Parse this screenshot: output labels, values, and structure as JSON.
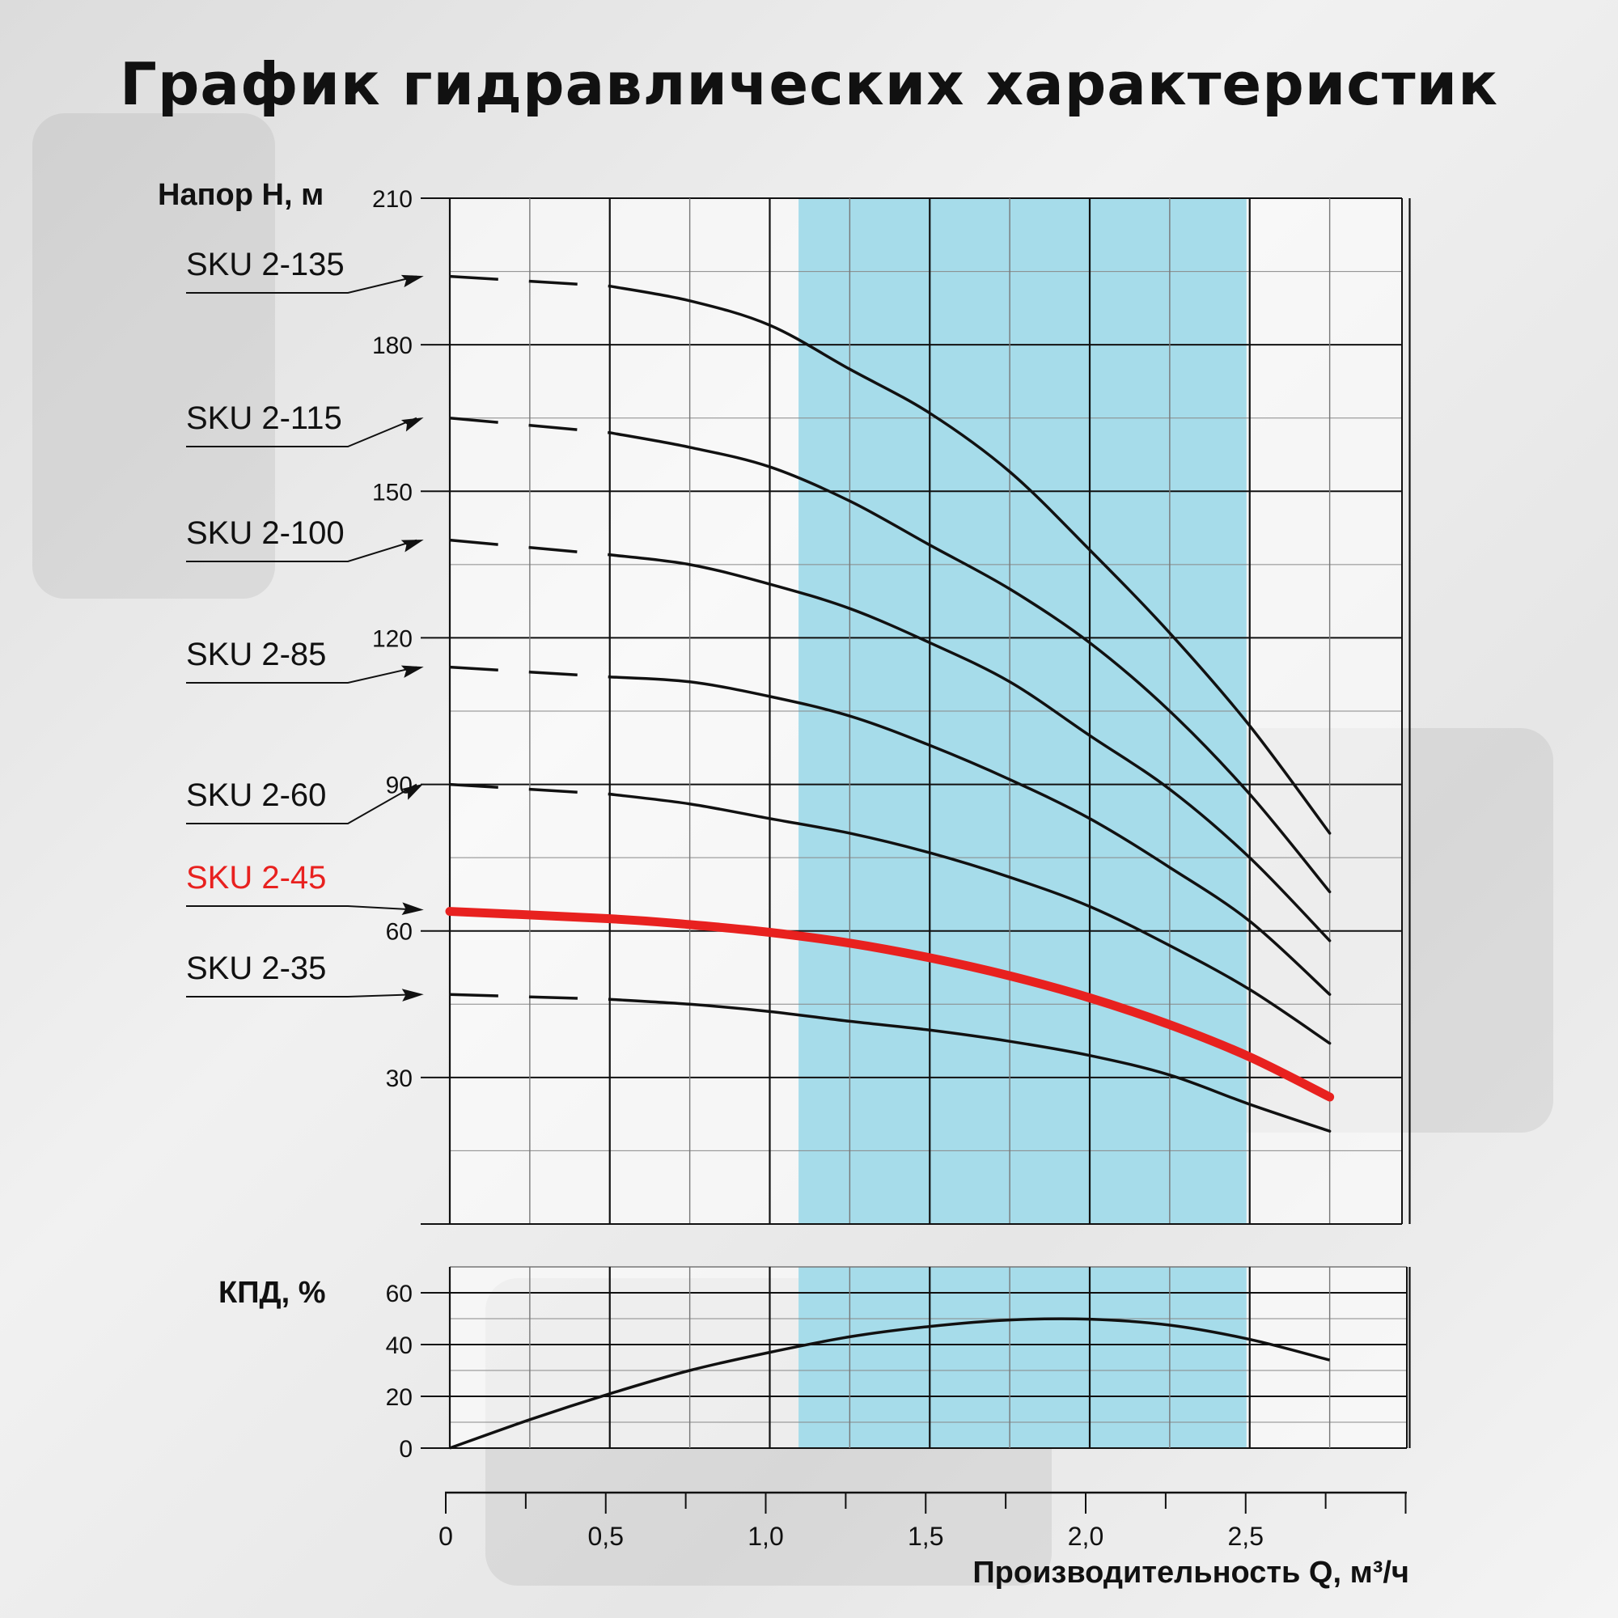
{
  "title": "График гидравлических характеристик",
  "colors": {
    "band": "#a6dcea",
    "highlight": "#e8211f",
    "line": "#111111",
    "grid": "#111111"
  },
  "chart_data": [
    {
      "type": "line",
      "ylabel": "Напор H, м",
      "xlabel": "Производительность Q, м³/ч",
      "xlim": [
        0,
        3.0
      ],
      "ylim": [
        0,
        210
      ],
      "yticks": [
        30,
        60,
        90,
        120,
        150,
        180,
        210
      ],
      "xticks": [
        0,
        0.5,
        1.0,
        1.5,
        2.0,
        2.5
      ],
      "xtick_labels": [
        "0",
        "0,5",
        "1,0",
        "1,5",
        "2,0",
        "2,5"
      ],
      "shaded_range_x": [
        1.09,
        2.49
      ],
      "grid": true,
      "series": [
        {
          "name": "SKU 2-135",
          "dashed_until": 0.5,
          "highlight": false,
          "points": [
            [
              0,
              194
            ],
            [
              0.5,
              192
            ],
            [
              0.75,
              189
            ],
            [
              1.0,
              184
            ],
            [
              1.25,
              175
            ],
            [
              1.5,
              166
            ],
            [
              1.75,
              154
            ],
            [
              2.0,
              138
            ],
            [
              2.25,
              121
            ],
            [
              2.5,
              102
            ],
            [
              2.75,
              80
            ]
          ]
        },
        {
          "name": "SKU 2-115",
          "dashed_until": 0.5,
          "highlight": false,
          "points": [
            [
              0,
              165
            ],
            [
              0.5,
              162
            ],
            [
              0.75,
              159
            ],
            [
              1.0,
              155
            ],
            [
              1.25,
              148
            ],
            [
              1.5,
              139
            ],
            [
              1.75,
              130
            ],
            [
              2.0,
              119
            ],
            [
              2.25,
              105
            ],
            [
              2.5,
              88
            ],
            [
              2.75,
              68
            ]
          ]
        },
        {
          "name": "SKU 2-100",
          "dashed_until": 0.5,
          "highlight": false,
          "points": [
            [
              0,
              140
            ],
            [
              0.5,
              137
            ],
            [
              0.75,
              135
            ],
            [
              1.0,
              131
            ],
            [
              1.25,
              126
            ],
            [
              1.5,
              119
            ],
            [
              1.75,
              111
            ],
            [
              2.0,
              100
            ],
            [
              2.25,
              89
            ],
            [
              2.5,
              75
            ],
            [
              2.75,
              58
            ]
          ]
        },
        {
          "name": "SKU 2-85",
          "dashed_until": 0.5,
          "highlight": false,
          "points": [
            [
              0,
              114
            ],
            [
              0.5,
              112
            ],
            [
              0.75,
              111
            ],
            [
              1.0,
              108
            ],
            [
              1.25,
              104
            ],
            [
              1.5,
              98
            ],
            [
              1.75,
              91
            ],
            [
              2.0,
              83
            ],
            [
              2.25,
              73
            ],
            [
              2.5,
              62
            ],
            [
              2.75,
              47
            ]
          ]
        },
        {
          "name": "SKU 2-60",
          "dashed_until": 0.5,
          "highlight": false,
          "points": [
            [
              0,
              90
            ],
            [
              0.5,
              88
            ],
            [
              0.75,
              86
            ],
            [
              1.0,
              83
            ],
            [
              1.25,
              80
            ],
            [
              1.5,
              76
            ],
            [
              1.75,
              71
            ],
            [
              2.0,
              65
            ],
            [
              2.25,
              57
            ],
            [
              2.5,
              48
            ],
            [
              2.75,
              37
            ]
          ]
        },
        {
          "name": "SKU 2-45",
          "dashed_until": 0,
          "highlight": true,
          "points": [
            [
              0,
              64
            ],
            [
              0.5,
              62.5
            ],
            [
              0.75,
              61.3
            ],
            [
              1.0,
              59.7
            ],
            [
              1.25,
              57.5
            ],
            [
              1.5,
              54.5
            ],
            [
              1.75,
              50.8
            ],
            [
              2.0,
              46.3
            ],
            [
              2.25,
              40.8
            ],
            [
              2.5,
              34.2
            ],
            [
              2.75,
              26
            ]
          ]
        },
        {
          "name": "SKU 2-35",
          "dashed_until": 0.5,
          "highlight": false,
          "points": [
            [
              0,
              47
            ],
            [
              0.5,
              46
            ],
            [
              0.75,
              45
            ],
            [
              1.0,
              43.5
            ],
            [
              1.25,
              41.5
            ],
            [
              1.5,
              39.7
            ],
            [
              1.75,
              37.4
            ],
            [
              2.0,
              34.5
            ],
            [
              2.25,
              30.5
            ],
            [
              2.5,
              24.5
            ],
            [
              2.75,
              19
            ]
          ]
        }
      ]
    },
    {
      "type": "line",
      "ylabel": "КПД, %",
      "xlabel": "Производительность Q, м³/ч",
      "xlim": [
        0,
        3.0
      ],
      "ylim": [
        0,
        70
      ],
      "yticks": [
        0,
        20,
        40,
        60
      ],
      "xticks": [
        0,
        0.5,
        1.0,
        1.5,
        2.0,
        2.5
      ],
      "xtick_labels": [
        "0",
        "0,5",
        "1,0",
        "1,5",
        "2,0",
        "2,5"
      ],
      "shaded_range_x": [
        1.09,
        2.49
      ],
      "grid": true,
      "series": [
        {
          "name": "",
          "points": [
            [
              0,
              0
            ],
            [
              0.25,
              11
            ],
            [
              0.5,
              21
            ],
            [
              0.75,
              30
            ],
            [
              1.0,
              37
            ],
            [
              1.25,
              43
            ],
            [
              1.5,
              47
            ],
            [
              1.75,
              49.5
            ],
            [
              2.0,
              49.8
            ],
            [
              2.25,
              47.5
            ],
            [
              2.5,
              42
            ],
            [
              2.75,
              34
            ]
          ]
        }
      ]
    }
  ]
}
